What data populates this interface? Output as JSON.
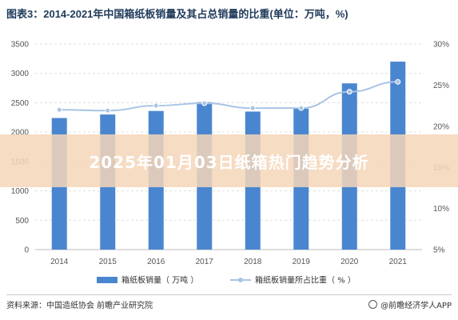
{
  "title": "图表3：2014-2021年中国箱纸板销量及其占总销量的比重(单位：万吨，%)",
  "banner": "2025年01月03日纸箱热门趋势分析",
  "source": "资料来源：中国造纸协会 前瞻产业研究院",
  "credit": "@前瞻经济学人APP",
  "chart_data": {
    "type": "bar+line",
    "categories": [
      "2014",
      "2015",
      "2016",
      "2017",
      "2018",
      "2019",
      "2020",
      "2021"
    ],
    "series": [
      {
        "name": "箱纸板销量（万吨）",
        "type": "bar",
        "axis": "left",
        "color": "#4a86d0",
        "values": [
          2240,
          2300,
          2360,
          2510,
          2350,
          2400,
          2830,
          3200
        ]
      },
      {
        "name": "箱纸板销量所占比重（%）",
        "type": "line",
        "axis": "right",
        "color": "#a9c4e4",
        "values": [
          22.0,
          21.9,
          22.5,
          22.8,
          22.2,
          22.2,
          24.2,
          25.4
        ]
      }
    ],
    "ylim_left": [
      0,
      3500
    ],
    "yticks_left": [
      "0",
      "500",
      "1000",
      "1500",
      "2000",
      "2500",
      "3000",
      "3500"
    ],
    "ylim_right": [
      5,
      30
    ],
    "yticks_right": [
      "5%",
      "10%",
      "15%",
      "20%",
      "25%",
      "30%"
    ],
    "grid": "horizontal dashed",
    "legend_position": "bottom"
  }
}
